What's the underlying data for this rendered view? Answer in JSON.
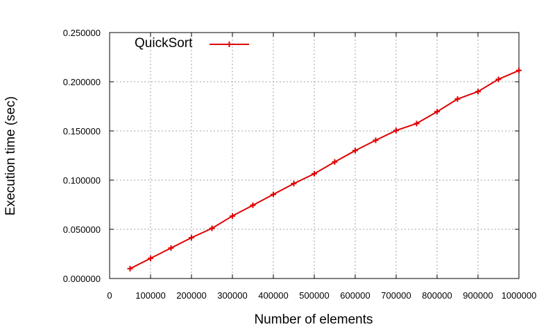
{
  "chart_data": {
    "type": "line",
    "title": "",
    "xlabel": "Number of elements",
    "ylabel": "Execution time (sec)",
    "xlim": [
      0,
      1000000
    ],
    "ylim": [
      0,
      0.25
    ],
    "x_ticks": [
      "0",
      "100000",
      "200000",
      "300000",
      "400000",
      "500000",
      "600000",
      "700000",
      "800000",
      "900000",
      "1000000"
    ],
    "y_ticks": [
      "0.000000",
      "0.050000",
      "0.100000",
      "0.150000",
      "0.200000",
      "0.250000"
    ],
    "grid": true,
    "legend_position": "top-left",
    "series": [
      {
        "name": "QuickSort",
        "color": "#e00000",
        "marker": "plus",
        "x": [
          50000,
          100000,
          150000,
          200000,
          250000,
          300000,
          350000,
          400000,
          450000,
          500000,
          550000,
          600000,
          650000,
          700000,
          750000,
          800000,
          850000,
          900000,
          950000,
          1000000
        ],
        "values": [
          0.01,
          0.0205,
          0.031,
          0.0415,
          0.051,
          0.0635,
          0.0745,
          0.0855,
          0.0965,
          0.1065,
          0.1185,
          0.13,
          0.1405,
          0.1505,
          0.1575,
          0.1695,
          0.1825,
          0.19,
          0.2025,
          0.2115
        ]
      }
    ]
  }
}
